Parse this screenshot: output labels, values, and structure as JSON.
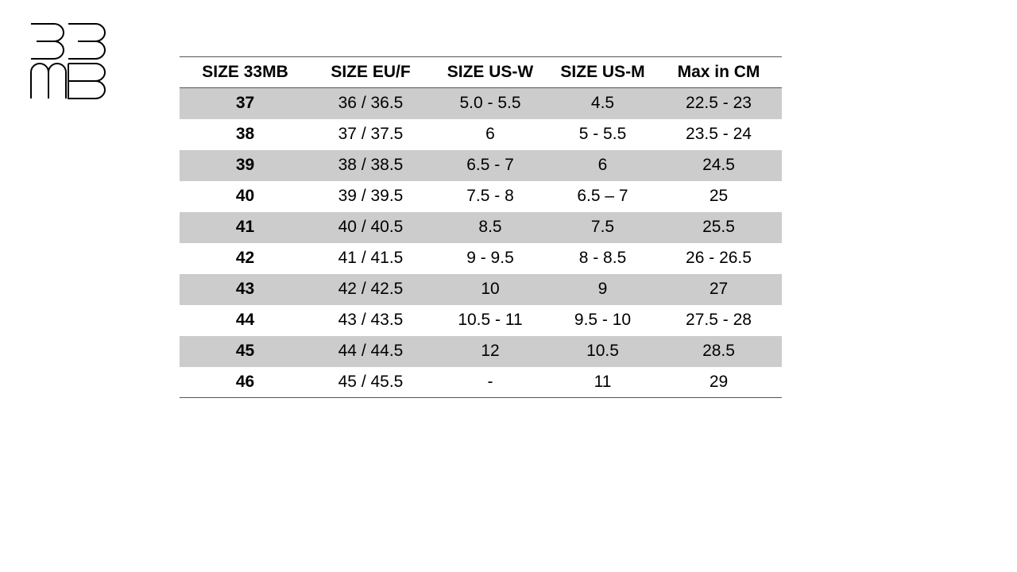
{
  "logo": {
    "text": "33MB",
    "icon": "brand-logo"
  },
  "table": {
    "headers": [
      "SIZE 33MB",
      "SIZE EU/F",
      "SIZE US-W",
      "SIZE US-M",
      "Max in CM"
    ],
    "rows": [
      [
        "37",
        "36 / 36.5",
        "5.0 - 5.5",
        "4.5",
        "22.5 - 23"
      ],
      [
        "38",
        "37 / 37.5",
        "6",
        "5 - 5.5",
        "23.5 - 24"
      ],
      [
        "39",
        "38 / 38.5",
        "6.5 - 7",
        "6",
        "24.5"
      ],
      [
        "40",
        "39 / 39.5",
        "7.5 - 8",
        "6.5 – 7",
        "25"
      ],
      [
        "41",
        "40 / 40.5",
        "8.5",
        "7.5",
        "25.5"
      ],
      [
        "42",
        "41 / 41.5",
        "9 - 9.5",
        "8 - 8.5",
        "26 - 26.5"
      ],
      [
        "43",
        "42 / 42.5",
        "10",
        "9",
        "27"
      ],
      [
        "44",
        "43 / 43.5",
        "10.5 - 11",
        "9.5 - 10",
        "27.5 - 28"
      ],
      [
        "45",
        "44 / 44.5",
        "12",
        "10.5",
        "28.5"
      ],
      [
        "46",
        "45 / 45.5",
        "-",
        "11",
        "29"
      ]
    ]
  },
  "colors": {
    "shaded_row": "#cccccc",
    "rule": "#555555",
    "text": "#000000"
  }
}
